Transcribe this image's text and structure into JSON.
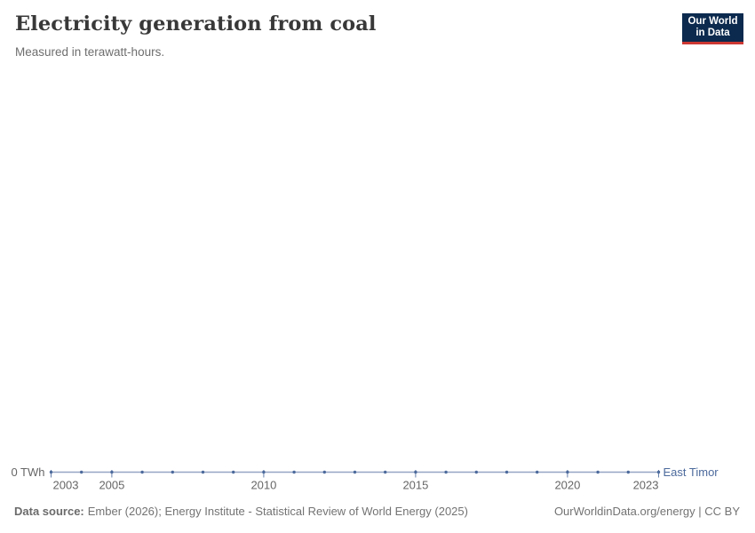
{
  "header": {
    "title": "Electricity generation from coal",
    "subtitle": "Measured in terawatt-hours."
  },
  "logo": {
    "line1": "Our World",
    "line2": "in Data",
    "bg_color": "#0c2a4e",
    "accent_color": "#cc3732"
  },
  "chart_data": {
    "type": "line",
    "title": "Electricity generation from coal",
    "subtitle": "Measured in terawatt-hours.",
    "x": [
      2003,
      2004,
      2005,
      2006,
      2007,
      2008,
      2009,
      2010,
      2011,
      2012,
      2013,
      2014,
      2015,
      2016,
      2017,
      2018,
      2019,
      2020,
      2021,
      2022,
      2023
    ],
    "series": [
      {
        "name": "East Timor",
        "color": "#4c6a9c",
        "values": [
          0,
          0,
          0,
          0,
          0,
          0,
          0,
          0,
          0,
          0,
          0,
          0,
          0,
          0,
          0,
          0,
          0,
          0,
          0,
          0,
          0
        ]
      }
    ],
    "x_ticks": [
      2003,
      2005,
      2010,
      2015,
      2020,
      2023
    ],
    "xlim": [
      2003,
      2023
    ],
    "ylim": [
      0,
      1
    ],
    "y_zero_label": "0 TWh",
    "xlabel": "",
    "ylabel": "",
    "grid": "off",
    "legend_position": "right-of-line-end",
    "axis_text_color": "#666666"
  },
  "footer": {
    "source_label": "Data source:",
    "source_text": "Ember (2026); Energy Institute - Statistical Review of World Energy (2025)",
    "credit": "OurWorldinData.org/energy | CC BY"
  }
}
